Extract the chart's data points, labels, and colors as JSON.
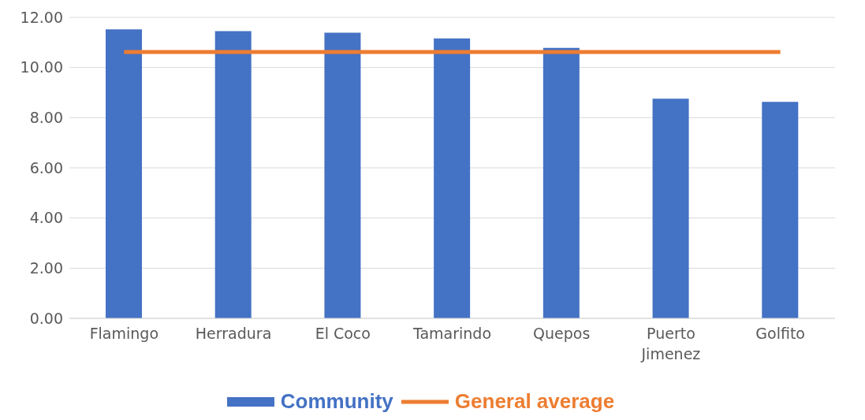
{
  "chart_data": {
    "type": "bar",
    "categories": [
      "Flamingo",
      "Herradura",
      "El Coco",
      "Tamarindo",
      "Quepos",
      "Puerto Jimenez",
      "Golfito"
    ],
    "series": [
      {
        "name": "Community",
        "color": "#4472c4",
        "values": [
          11.52,
          11.45,
          11.39,
          11.16,
          10.78,
          8.76,
          8.63
        ]
      },
      {
        "name": "General average",
        "type": "line",
        "color": "#ed7d31",
        "values": [
          10.62,
          10.62,
          10.62,
          10.62,
          10.62,
          10.62,
          10.62
        ]
      }
    ],
    "ylim": [
      0,
      12
    ],
    "yticks": [
      {
        "value": 0,
        "label": "0.00"
      },
      {
        "value": 2,
        "label": "2.00"
      },
      {
        "value": 4,
        "label": "4.00"
      },
      {
        "value": 6,
        "label": "6.00"
      },
      {
        "value": 8,
        "label": "8.00"
      },
      {
        "value": 10,
        "label": "10.00"
      },
      {
        "value": 12,
        "label": "12.00"
      }
    ],
    "grid": "y",
    "legend": "bottom",
    "marker": "none"
  }
}
